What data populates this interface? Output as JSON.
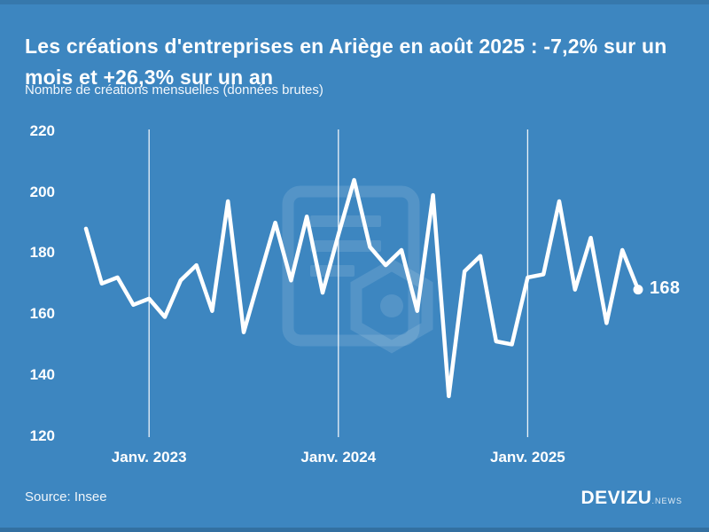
{
  "header": {
    "title": "Les créations d'entreprises en Ariège en août 2025 : -7,2% sur un mois et +26,3% sur un an",
    "subtitle": "Nombre de créations mensuelles (données brutes)"
  },
  "chart_data": {
    "type": "line",
    "title": "Les créations d'entreprises en Ariège en août 2025 : -7,2% sur un mois et +26,3% sur un an",
    "subtitle": "Nombre de créations mensuelles (données brutes)",
    "x": [
      "Sept. 2022",
      "Oct. 2022",
      "Nov. 2022",
      "Déc. 2022",
      "Janv. 2023",
      "Févr. 2023",
      "Mars 2023",
      "Avr. 2023",
      "Mai 2023",
      "Juin 2023",
      "Juil. 2023",
      "Août 2023",
      "Sept. 2023",
      "Oct. 2023",
      "Nov. 2023",
      "Déc. 2023",
      "Janv. 2024",
      "Févr. 2024",
      "Mars 2024",
      "Avr. 2024",
      "Mai 2024",
      "Juin 2024",
      "Juil. 2024",
      "Août 2024",
      "Sept. 2024",
      "Oct. 2024",
      "Nov. 2024",
      "Déc. 2024",
      "Janv. 2025",
      "Févr. 2025",
      "Mars 2025",
      "Avr. 2025",
      "Mai 2025",
      "Juin 2025",
      "Juil. 2025",
      "Août 2025"
    ],
    "values": [
      188,
      170,
      172,
      163,
      165,
      159,
      171,
      176,
      161,
      197,
      154,
      172,
      190,
      171,
      192,
      167,
      186,
      204,
      182,
      176,
      181,
      161,
      199,
      133,
      174,
      179,
      151,
      150,
      172,
      173,
      197,
      168,
      185,
      157,
      181,
      168
    ],
    "xlabel": "",
    "ylabel": "",
    "ylim": [
      120,
      220
    ],
    "yticks": [
      220,
      200,
      180,
      160,
      140,
      120
    ],
    "xticks": [
      {
        "label": "Janv. 2023",
        "index": 4
      },
      {
        "label": "Janv. 2024",
        "index": 16
      },
      {
        "label": "Janv. 2025",
        "index": 28
      }
    ],
    "end_label": "168",
    "line_color": "#ffffff",
    "background_color": "#3d86c0",
    "grid": "vertical white gridlines at each January",
    "legend": "none"
  },
  "footer": {
    "source": "Source: Insee",
    "brand": "DEVIZU",
    "brand_suffix": ".NEWS"
  }
}
